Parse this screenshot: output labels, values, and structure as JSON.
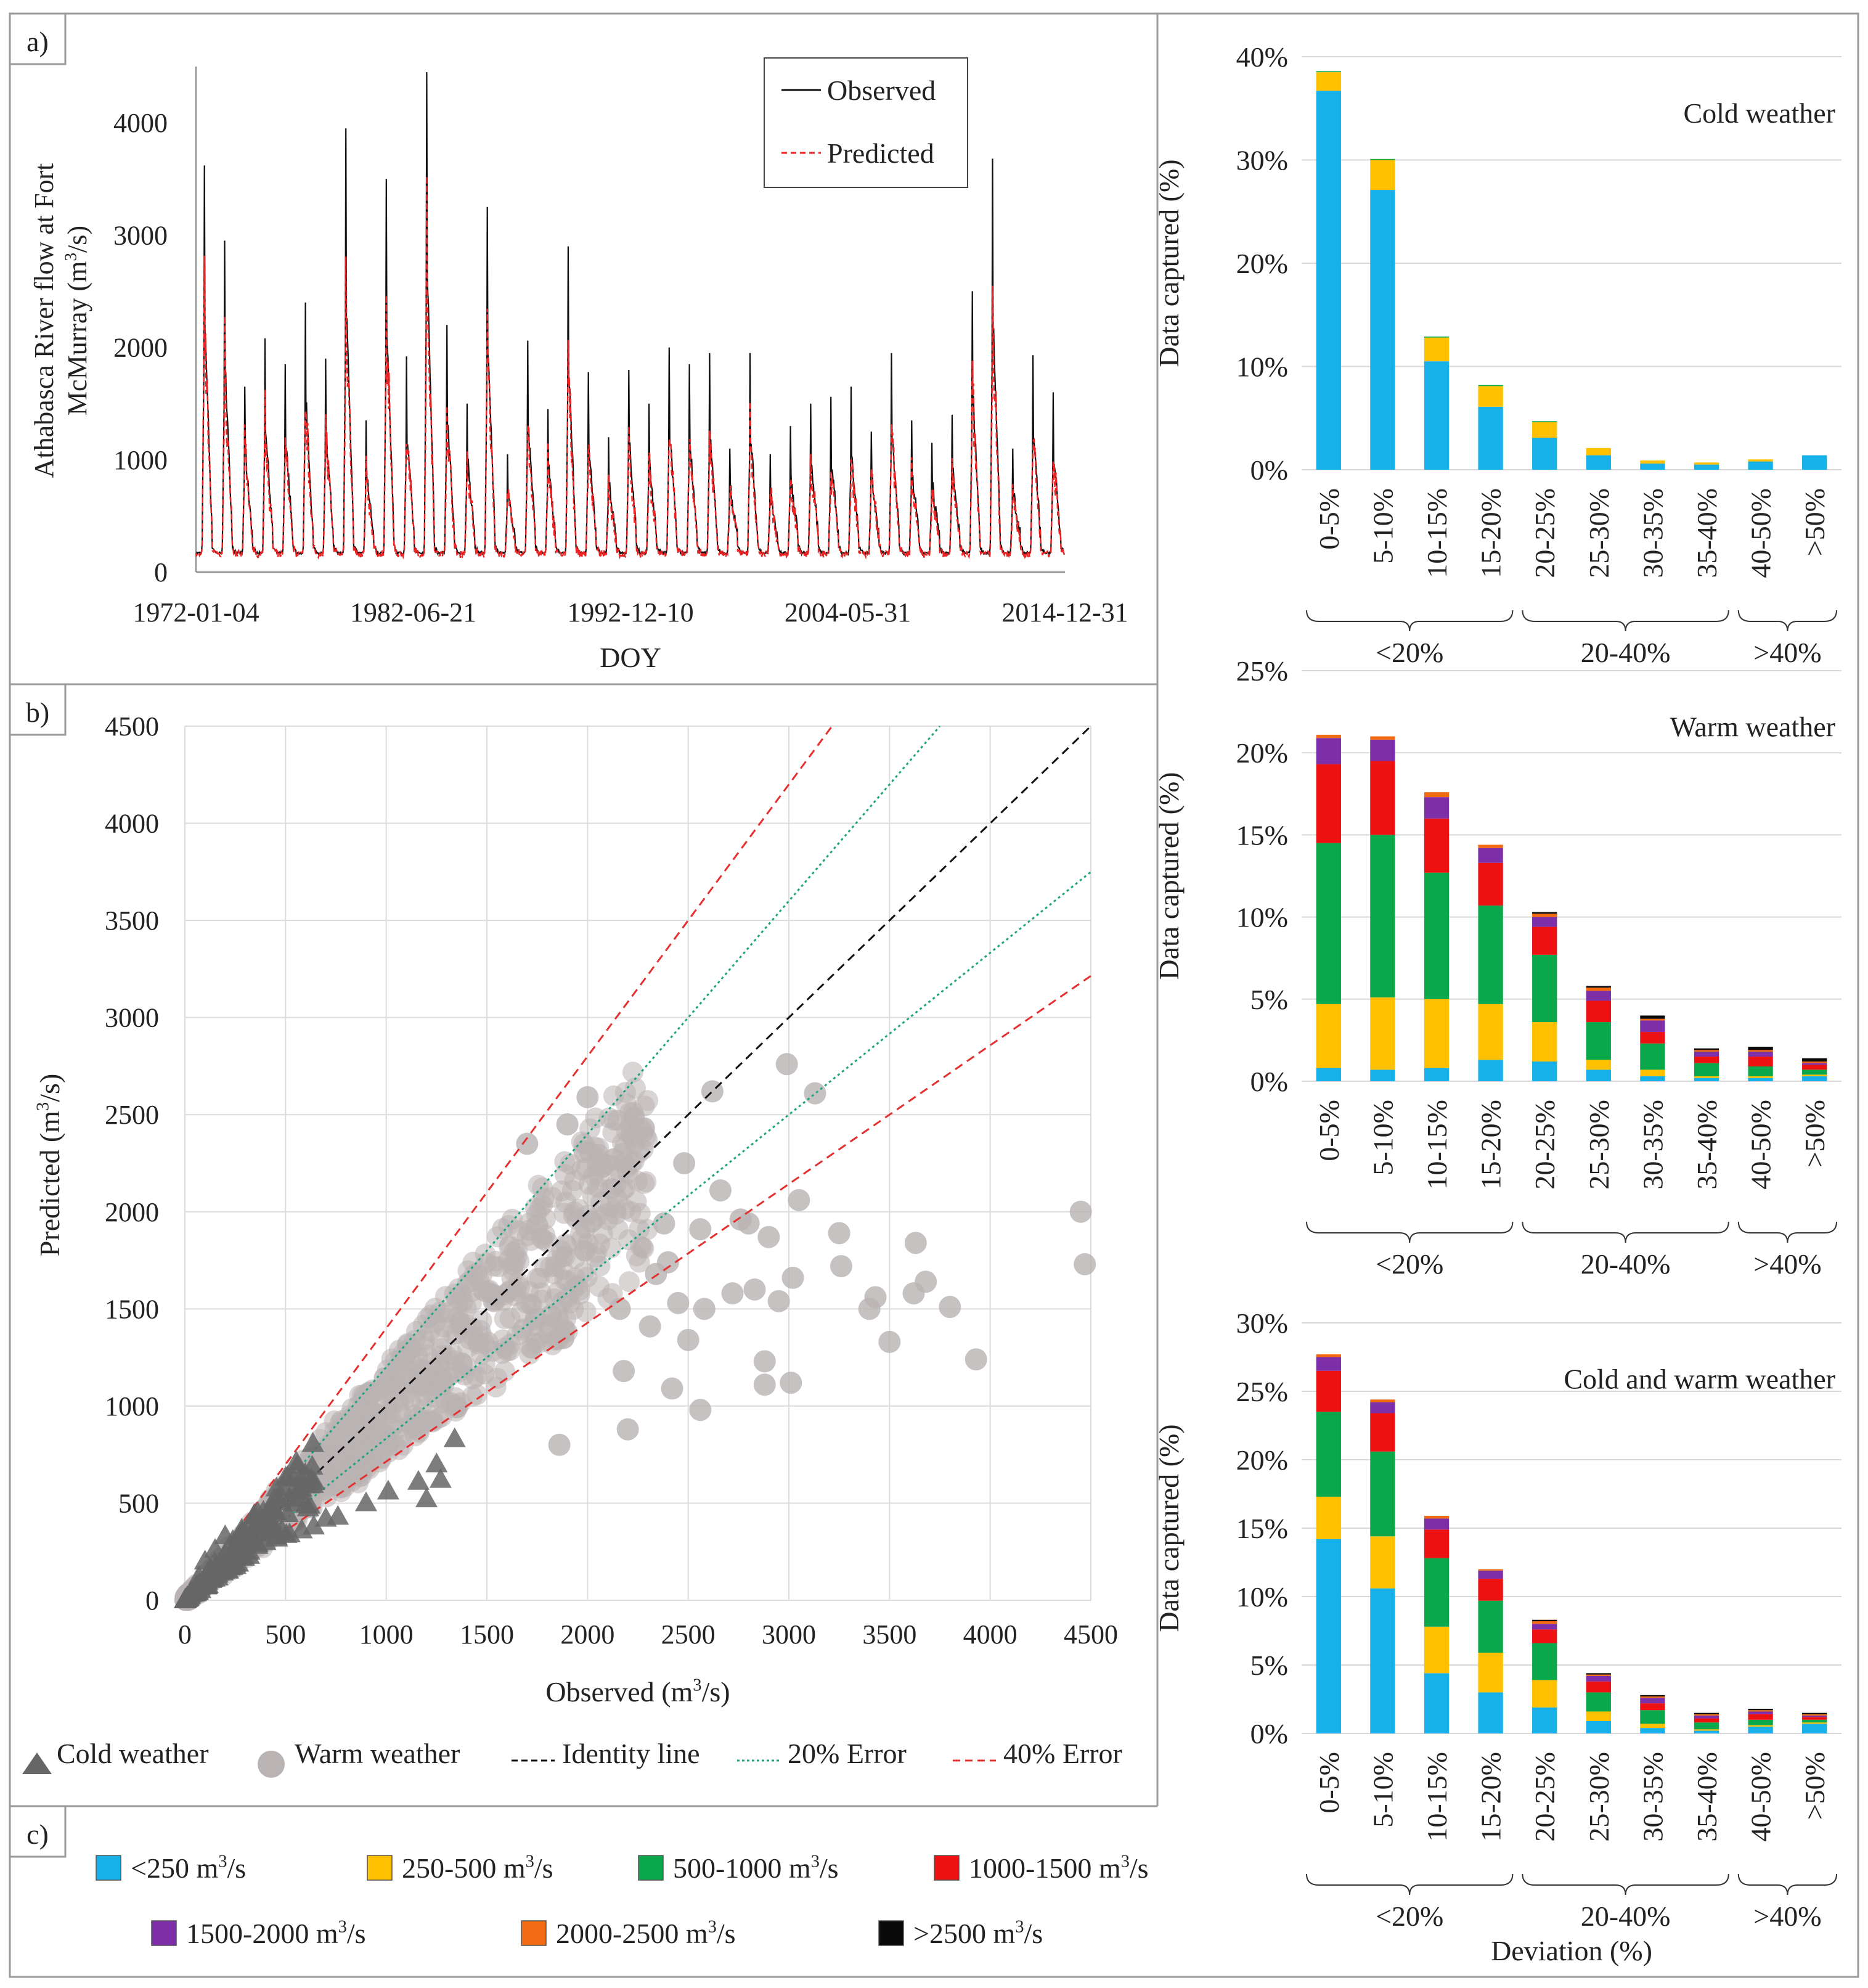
{
  "panel_labels": {
    "a": "a)",
    "b": "b)",
    "c": "c)"
  },
  "colors": {
    "observed": "#111111",
    "predicted": "#ee2222",
    "identity": "#111111",
    "err20": "#1fa57a",
    "err40": "#e53030",
    "cold_marker": "#666666",
    "warm_marker": "#b9b3b3",
    "bin_lt250": "#17b1ea",
    "bin_250_500": "#ffc000",
    "bin_500_1000": "#0aa84a",
    "bin_1000_1500": "#ee1111",
    "bin_1500_2000": "#7c2fa8",
    "bin_2000_2500": "#f26a12",
    "bin_gt2500": "#0a0a0a"
  },
  "legend_c": [
    {
      "label": "<250 m³/s",
      "color_key": "bin_lt250"
    },
    {
      "label": "250-500 m³/s",
      "color_key": "bin_250_500"
    },
    {
      "label": "500-1000 m³/s",
      "color_key": "bin_500_1000"
    },
    {
      "label": "1000-1500 m³/s",
      "color_key": "bin_1000_1500"
    },
    {
      "label": "1500-2000 m³/s",
      "color_key": "bin_1500_2000"
    },
    {
      "label": "2000-2500 m³/s",
      "color_key": "bin_2000_2500"
    },
    {
      "label": ">2500 m³/s",
      "color_key": "bin_gt2500"
    }
  ],
  "chart_data": [
    {
      "id": "a",
      "type": "line",
      "xlabel": "DOY",
      "ylabel_line1": "Athabasca River flow at Fort",
      "ylabel_line2": "McMurray (m³/s)",
      "x_tick_labels": [
        "1972-01-04",
        "1982-06-21",
        "1992-12-10",
        "2004-05-31",
        "2014-12-31"
      ],
      "x_range_years": [
        1972.0,
        2015.0
      ],
      "ylim": [
        0,
        4500
      ],
      "yticks": [
        0,
        1000,
        2000,
        3000,
        4000
      ],
      "series": [
        {
          "name": "Observed",
          "style": "solid"
        },
        {
          "name": "Predicted",
          "style": "dashed"
        }
      ],
      "annual_peaks_observed": [
        {
          "year": 1972,
          "peak": 3620
        },
        {
          "year": 1973,
          "peak": 2950
        },
        {
          "year": 1974,
          "peak": 1650
        },
        {
          "year": 1975,
          "peak": 2080
        },
        {
          "year": 1976,
          "peak": 1850
        },
        {
          "year": 1977,
          "peak": 2400
        },
        {
          "year": 1978,
          "peak": 1900
        },
        {
          "year": 1979,
          "peak": 3950
        },
        {
          "year": 1980,
          "peak": 1350
        },
        {
          "year": 1981,
          "peak": 3500
        },
        {
          "year": 1982,
          "peak": 1920
        },
        {
          "year": 1983,
          "peak": 4450
        },
        {
          "year": 1984,
          "peak": 2200
        },
        {
          "year": 1985,
          "peak": 1500
        },
        {
          "year": 1986,
          "peak": 3250
        },
        {
          "year": 1987,
          "peak": 1050
        },
        {
          "year": 1988,
          "peak": 2060
        },
        {
          "year": 1989,
          "peak": 1450
        },
        {
          "year": 1990,
          "peak": 2900
        },
        {
          "year": 1991,
          "peak": 1780
        },
        {
          "year": 1992,
          "peak": 1200
        },
        {
          "year": 1993,
          "peak": 1800
        },
        {
          "year": 1994,
          "peak": 1500
        },
        {
          "year": 1995,
          "peak": 2000
        },
        {
          "year": 1996,
          "peak": 1850
        },
        {
          "year": 1997,
          "peak": 1950
        },
        {
          "year": 1998,
          "peak": 1100
        },
        {
          "year": 1999,
          "peak": 1950
        },
        {
          "year": 2000,
          "peak": 1050
        },
        {
          "year": 2001,
          "peak": 1300
        },
        {
          "year": 2002,
          "peak": 1500
        },
        {
          "year": 2003,
          "peak": 1560
        },
        {
          "year": 2004,
          "peak": 1650
        },
        {
          "year": 2005,
          "peak": 1250
        },
        {
          "year": 2006,
          "peak": 1950
        },
        {
          "year": 2007,
          "peak": 1350
        },
        {
          "year": 2008,
          "peak": 1150
        },
        {
          "year": 2009,
          "peak": 1400
        },
        {
          "year": 2010,
          "peak": 2500
        },
        {
          "year": 2011,
          "peak": 3680
        },
        {
          "year": 2012,
          "peak": 1100
        },
        {
          "year": 2013,
          "peak": 1930
        },
        {
          "year": 2014,
          "peak": 1600
        }
      ],
      "baseline_flow": 160
    },
    {
      "id": "b",
      "type": "scatter",
      "xlabel": "Observed (m³/s)",
      "ylabel": "Predicted (m³/s)",
      "xlim": [
        0,
        4500
      ],
      "ylim": [
        0,
        4500
      ],
      "xticks": [
        0,
        500,
        1000,
        1500,
        2000,
        2500,
        3000,
        3500,
        4000,
        4500
      ],
      "yticks": [
        0,
        500,
        1000,
        1500,
        2000,
        2500,
        3000,
        3500,
        4000,
        4500
      ],
      "reference_lines": [
        {
          "name": "Identity line",
          "slope": 1.0
        },
        {
          "name": "20% Error",
          "slope": 1.2
        },
        {
          "name": "20% Error",
          "slope": 0.8333
        },
        {
          "name": "40% Error",
          "slope": 1.4
        },
        {
          "name": "40% Error",
          "slope": 0.7143
        }
      ],
      "legend": [
        "Cold weather",
        "Warm weather",
        "Identity line",
        "20% Error",
        "40% Error"
      ],
      "outlier_points_warm": [
        [
          4450,
          2000
        ],
        [
          4470,
          1730
        ],
        [
          3930,
          1240
        ],
        [
          3800,
          1510
        ],
        [
          3630,
          1840
        ],
        [
          3680,
          1640
        ],
        [
          3620,
          1580
        ],
        [
          3500,
          1330
        ],
        [
          3430,
          1560
        ],
        [
          3400,
          1500
        ],
        [
          3250,
          1890
        ],
        [
          3260,
          1720
        ],
        [
          3130,
          2610
        ],
        [
          3050,
          2060
        ],
        [
          3020,
          1660
        ],
        [
          3010,
          1120
        ],
        [
          2990,
          2760
        ],
        [
          2950,
          1540
        ],
        [
          2900,
          1870
        ],
        [
          2880,
          1230
        ],
        [
          2880,
          1110
        ],
        [
          2830,
          1600
        ],
        [
          2800,
          1940
        ],
        [
          2760,
          1960
        ],
        [
          2720,
          1580
        ],
        [
          2660,
          2110
        ],
        [
          2620,
          2620
        ],
        [
          2580,
          1500
        ],
        [
          2560,
          980
        ],
        [
          2560,
          1910
        ],
        [
          2500,
          1340
        ],
        [
          2480,
          2250
        ],
        [
          2450,
          1530
        ],
        [
          2420,
          1090
        ],
        [
          2400,
          1740
        ],
        [
          2380,
          1940
        ],
        [
          2340,
          1680
        ],
        [
          2310,
          1410
        ],
        [
          2280,
          2430
        ],
        [
          2220,
          2400
        ],
        [
          2200,
          880
        ],
        [
          2180,
          1180
        ],
        [
          2160,
          1500
        ],
        [
          2130,
          2270
        ],
        [
          2070,
          2230
        ],
        [
          2020,
          1950
        ],
        [
          2000,
          2590
        ],
        [
          1900,
          2450
        ],
        [
          1880,
          1350
        ],
        [
          1860,
          800
        ],
        [
          1750,
          1930
        ],
        [
          1700,
          2350
        ]
      ],
      "cold_points": [
        [
          1340,
          830
        ],
        [
          1250,
          700
        ],
        [
          1270,
          620
        ],
        [
          1200,
          520
        ],
        [
          1160,
          610
        ],
        [
          1010,
          560
        ],
        [
          900,
          500
        ],
        [
          760,
          430
        ],
        [
          700,
          420
        ],
        [
          640,
          380
        ],
        [
          580,
          360
        ],
        [
          520,
          340
        ],
        [
          490,
          580
        ],
        [
          460,
          520
        ],
        [
          430,
          410
        ],
        [
          400,
          300
        ],
        [
          360,
          280
        ],
        [
          320,
          250
        ],
        [
          280,
          220
        ],
        [
          250,
          190
        ],
        [
          220,
          170
        ],
        [
          200,
          330
        ],
        [
          180,
          150
        ],
        [
          150,
          260
        ],
        [
          130,
          110
        ],
        [
          100,
          200
        ],
        [
          90,
          80
        ],
        [
          70,
          120
        ],
        [
          50,
          50
        ],
        [
          30,
          40
        ]
      ]
    },
    {
      "id": "c1",
      "type": "bar",
      "title": "Cold weather",
      "ylabel": "Data captured (%)",
      "ylim": [
        0,
        40
      ],
      "yticks": [
        0,
        10,
        20,
        30,
        40
      ],
      "categories": [
        "0-5%",
        "5-10%",
        "10-15%",
        "15-20%",
        "20-25%",
        "25-30%",
        "30-35%",
        "35-40%",
        "40-50%",
        ">50%"
      ],
      "groups": [
        {
          "label": "<20%",
          "from": 0,
          "to": 3
        },
        {
          "label": "20-40%",
          "from": 4,
          "to": 7
        },
        {
          "label": ">40%",
          "from": 8,
          "to": 9
        }
      ],
      "series": [
        {
          "name": "<250 m³/s",
          "color_key": "bin_lt250",
          "values": [
            36.7,
            27.1,
            10.5,
            6.1,
            3.1,
            1.4,
            0.6,
            0.5,
            0.8,
            1.4
          ]
        },
        {
          "name": "250-500 m³/s",
          "color_key": "bin_250_500",
          "values": [
            1.8,
            2.9,
            2.3,
            2.0,
            1.5,
            0.7,
            0.3,
            0.2,
            0.2,
            0.0
          ]
        },
        {
          "name": "500-1000 m³/s",
          "color_key": "bin_500_1000",
          "values": [
            0.1,
            0.1,
            0.1,
            0.1,
            0.1,
            0.0,
            0.0,
            0.0,
            0.0,
            0.0
          ]
        }
      ]
    },
    {
      "id": "c2",
      "type": "bar",
      "title": "Warm weather",
      "ylabel": "Data captured (%)",
      "ylim": [
        0,
        25
      ],
      "yticks": [
        0,
        5,
        10,
        15,
        20,
        25
      ],
      "categories": [
        "0-5%",
        "5-10%",
        "10-15%",
        "15-20%",
        "20-25%",
        "25-30%",
        "30-35%",
        "35-40%",
        "40-50%",
        ">50%"
      ],
      "groups": [
        {
          "label": "<20%",
          "from": 0,
          "to": 3
        },
        {
          "label": "20-40%",
          "from": 4,
          "to": 7
        },
        {
          "label": ">40%",
          "from": 8,
          "to": 9
        }
      ],
      "series": [
        {
          "name": "<250 m³/s",
          "color_key": "bin_lt250",
          "values": [
            0.8,
            0.7,
            0.8,
            1.3,
            1.2,
            0.7,
            0.3,
            0.2,
            0.2,
            0.3
          ]
        },
        {
          "name": "250-500 m³/s",
          "color_key": "bin_250_500",
          "values": [
            3.9,
            4.4,
            4.2,
            3.4,
            2.4,
            0.6,
            0.4,
            0.1,
            0.1,
            0.1
          ]
        },
        {
          "name": "500-1000 m³/s",
          "color_key": "bin_500_1000",
          "values": [
            9.8,
            9.9,
            7.7,
            6.0,
            4.1,
            2.3,
            1.6,
            0.8,
            0.6,
            0.3
          ]
        },
        {
          "name": "1000-1500 m³/s",
          "color_key": "bin_1000_1500",
          "values": [
            4.8,
            4.5,
            3.3,
            2.6,
            1.7,
            1.3,
            0.7,
            0.4,
            0.6,
            0.3
          ]
        },
        {
          "name": "1500-2000 m³/s",
          "color_key": "bin_1500_2000",
          "values": [
            1.6,
            1.3,
            1.3,
            0.9,
            0.6,
            0.6,
            0.7,
            0.3,
            0.3,
            0.1
          ]
        },
        {
          "name": "2000-2500 m³/s",
          "color_key": "bin_2000_2500",
          "values": [
            0.2,
            0.2,
            0.3,
            0.2,
            0.2,
            0.2,
            0.1,
            0.1,
            0.1,
            0.1
          ]
        },
        {
          "name": ">2500 m³/s",
          "color_key": "bin_gt2500",
          "values": [
            0.0,
            0.0,
            0.0,
            0.0,
            0.1,
            0.1,
            0.2,
            0.1,
            0.2,
            0.2
          ]
        }
      ]
    },
    {
      "id": "c3",
      "type": "bar",
      "title": "Cold and warm weather",
      "ylabel": "Data captured (%)",
      "xlabel": "Deviation (%)",
      "ylim": [
        0,
        30
      ],
      "yticks": [
        0,
        5,
        10,
        15,
        20,
        25,
        30
      ],
      "categories": [
        "0-5%",
        "5-10%",
        "10-15%",
        "15-20%",
        "20-25%",
        "25-30%",
        "30-35%",
        "35-40%",
        "40-50%",
        ">50%"
      ],
      "groups": [
        {
          "label": "<20%",
          "from": 0,
          "to": 3
        },
        {
          "label": "20-40%",
          "from": 4,
          "to": 7
        },
        {
          "label": ">40%",
          "from": 8,
          "to": 9
        }
      ],
      "series": [
        {
          "name": "<250 m³/s",
          "color_key": "bin_lt250",
          "values": [
            14.2,
            10.6,
            4.4,
            3.0,
            1.9,
            0.9,
            0.4,
            0.2,
            0.5,
            0.7
          ]
        },
        {
          "name": "250-500 m³/s",
          "color_key": "bin_250_500",
          "values": [
            3.1,
            3.8,
            3.4,
            2.9,
            2.0,
            0.7,
            0.3,
            0.1,
            0.1,
            0.1
          ]
        },
        {
          "name": "500-1000 m³/s",
          "color_key": "bin_500_1000",
          "values": [
            6.2,
            6.2,
            5.0,
            3.8,
            2.7,
            1.4,
            1.0,
            0.5,
            0.4,
            0.2
          ]
        },
        {
          "name": "1000-1500 m³/s",
          "color_key": "bin_1000_1500",
          "values": [
            3.0,
            2.8,
            2.1,
            1.6,
            1.0,
            0.8,
            0.5,
            0.3,
            0.4,
            0.2
          ]
        },
        {
          "name": "1500-2000 m³/s",
          "color_key": "bin_1500_2000",
          "values": [
            1.0,
            0.8,
            0.8,
            0.6,
            0.4,
            0.4,
            0.4,
            0.2,
            0.2,
            0.1
          ]
        },
        {
          "name": "2000-2500 m³/s",
          "color_key": "bin_2000_2500",
          "values": [
            0.2,
            0.2,
            0.2,
            0.1,
            0.2,
            0.1,
            0.1,
            0.1,
            0.1,
            0.1
          ]
        },
        {
          "name": ">2500 m³/s",
          "color_key": "bin_gt2500",
          "values": [
            0.0,
            0.0,
            0.0,
            0.0,
            0.1,
            0.1,
            0.1,
            0.1,
            0.1,
            0.1
          ]
        }
      ]
    }
  ]
}
